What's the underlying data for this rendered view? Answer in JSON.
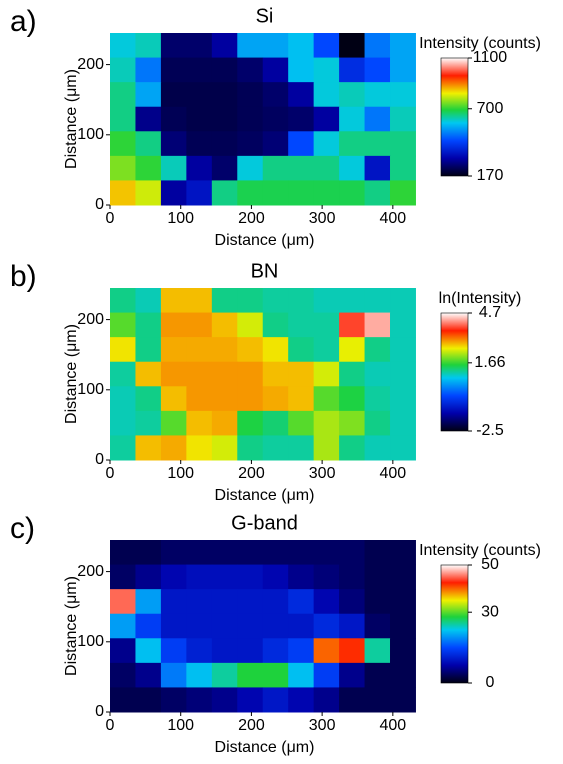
{
  "chart_data": [
    {
      "type": "heatmap",
      "panel_label": "a)",
      "title": "Si",
      "xlabel": "Distance (μm)",
      "ylabel": "Distance (μm)",
      "xlim": [
        0,
        437
      ],
      "ylim": [
        0,
        245
      ],
      "xticks": [
        0,
        100,
        200,
        300,
        400
      ],
      "yticks": [
        0,
        100,
        200
      ],
      "x": [
        18,
        54,
        90,
        126,
        162,
        198,
        234,
        270,
        306,
        342,
        378,
        414
      ],
      "y": [
        227.5,
        192.5,
        157.5,
        122.5,
        87.5,
        52.5,
        17.5
      ],
      "z": [
        [
          600,
          620,
          250,
          250,
          300,
          550,
          550,
          580,
          450,
          170,
          500,
          550
        ],
        [
          620,
          500,
          230,
          230,
          230,
          250,
          300,
          580,
          600,
          400,
          450,
          550
        ],
        [
          650,
          550,
          220,
          220,
          220,
          230,
          250,
          300,
          600,
          620,
          600,
          600
        ],
        [
          650,
          280,
          230,
          220,
          220,
          230,
          240,
          250,
          300,
          600,
          500,
          620
        ],
        [
          700,
          650,
          260,
          230,
          230,
          240,
          260,
          450,
          600,
          650,
          650,
          650
        ],
        [
          750,
          700,
          620,
          300,
          250,
          600,
          650,
          650,
          650,
          600,
          350,
          650
        ],
        [
          850,
          800,
          300,
          350,
          650,
          680,
          680,
          680,
          680,
          680,
          650,
          700
        ]
      ],
      "colorbar": {
        "label": "Intensity (counts)",
        "clim": [
          170,
          1100
        ],
        "ticks": [
          1100,
          700,
          170
        ]
      }
    },
    {
      "type": "heatmap",
      "panel_label": "b)",
      "title": "BN",
      "xlabel": "Distance (μm)",
      "ylabel": "Distance (μm)",
      "xlim": [
        0,
        437
      ],
      "ylim": [
        0,
        245
      ],
      "xticks": [
        0,
        100,
        200,
        300,
        400
      ],
      "yticks": [
        0,
        100,
        200
      ],
      "x": [
        18,
        54,
        90,
        126,
        162,
        198,
        234,
        270,
        306,
        342,
        378,
        414
      ],
      "y": [
        227.5,
        192.5,
        157.5,
        122.5,
        87.5,
        52.5,
        17.5
      ],
      "z": [
        [
          1.2,
          1.0,
          2.8,
          2.8,
          1.2,
          1.2,
          1.1,
          1.1,
          1.0,
          1.0,
          1.0,
          1.0
        ],
        [
          1.8,
          1.2,
          3.0,
          3.0,
          2.8,
          2.4,
          1.2,
          1.1,
          1.1,
          3.8,
          4.3,
          1.0
        ],
        [
          2.6,
          1.2,
          2.9,
          2.9,
          2.9,
          2.8,
          2.6,
          1.2,
          1.1,
          2.5,
          1.2,
          1.0
        ],
        [
          1.1,
          2.8,
          3.0,
          3.0,
          3.0,
          3.0,
          2.8,
          2.8,
          2.4,
          1.2,
          1.0,
          1.0
        ],
        [
          1.0,
          1.2,
          2.8,
          3.0,
          3.0,
          3.0,
          2.9,
          2.8,
          1.8,
          1.5,
          1.1,
          1.0
        ],
        [
          1.0,
          1.1,
          1.8,
          2.8,
          2.9,
          1.5,
          1.3,
          1.8,
          2.2,
          2.0,
          1.2,
          1.0
        ],
        [
          1.1,
          2.8,
          2.9,
          2.6,
          2.4,
          1.2,
          1.1,
          1.1,
          2.2,
          1.2,
          1.0,
          1.0
        ]
      ],
      "colorbar": {
        "label": "ln(Intensity)",
        "clim": [
          -2.5,
          4.7
        ],
        "ticks": [
          4.7,
          1.66,
          -2.5
        ]
      }
    },
    {
      "type": "heatmap",
      "panel_label": "c)",
      "title": "G-band",
      "xlabel": "Distance (μm)",
      "ylabel": "Distance (μm)",
      "xlim": [
        0,
        437
      ],
      "ylim": [
        0,
        245
      ],
      "xticks": [
        0,
        100,
        200,
        300,
        400
      ],
      "yticks": [
        0,
        100,
        200
      ],
      "x": [
        18,
        54,
        90,
        126,
        162,
        198,
        234,
        270,
        306,
        342,
        378,
        414
      ],
      "y": [
        227.5,
        192.5,
        157.5,
        122.5,
        87.5,
        52.5,
        17.5
      ],
      "z": [
        [
          3,
          3,
          4,
          4,
          4,
          4,
          4,
          4,
          4,
          4,
          3,
          3
        ],
        [
          4,
          6,
          8,
          9,
          9,
          9,
          8,
          6,
          5,
          4,
          3,
          3
        ],
        [
          45,
          20,
          10,
          10,
          10,
          10,
          10,
          12,
          8,
          5,
          3,
          3
        ],
        [
          20,
          14,
          10,
          10,
          10,
          10,
          10,
          10,
          12,
          10,
          4,
          3
        ],
        [
          6,
          22,
          14,
          11,
          10,
          10,
          12,
          14,
          40,
          42,
          25,
          3
        ],
        [
          4,
          6,
          18,
          22,
          25,
          28,
          28,
          22,
          14,
          6,
          3,
          3
        ],
        [
          3,
          3,
          4,
          5,
          6,
          8,
          10,
          8,
          6,
          3,
          3,
          3
        ]
      ],
      "colorbar": {
        "label": "Intensity (counts)",
        "clim": [
          0,
          50
        ],
        "ticks": [
          50,
          30,
          0
        ]
      }
    }
  ]
}
